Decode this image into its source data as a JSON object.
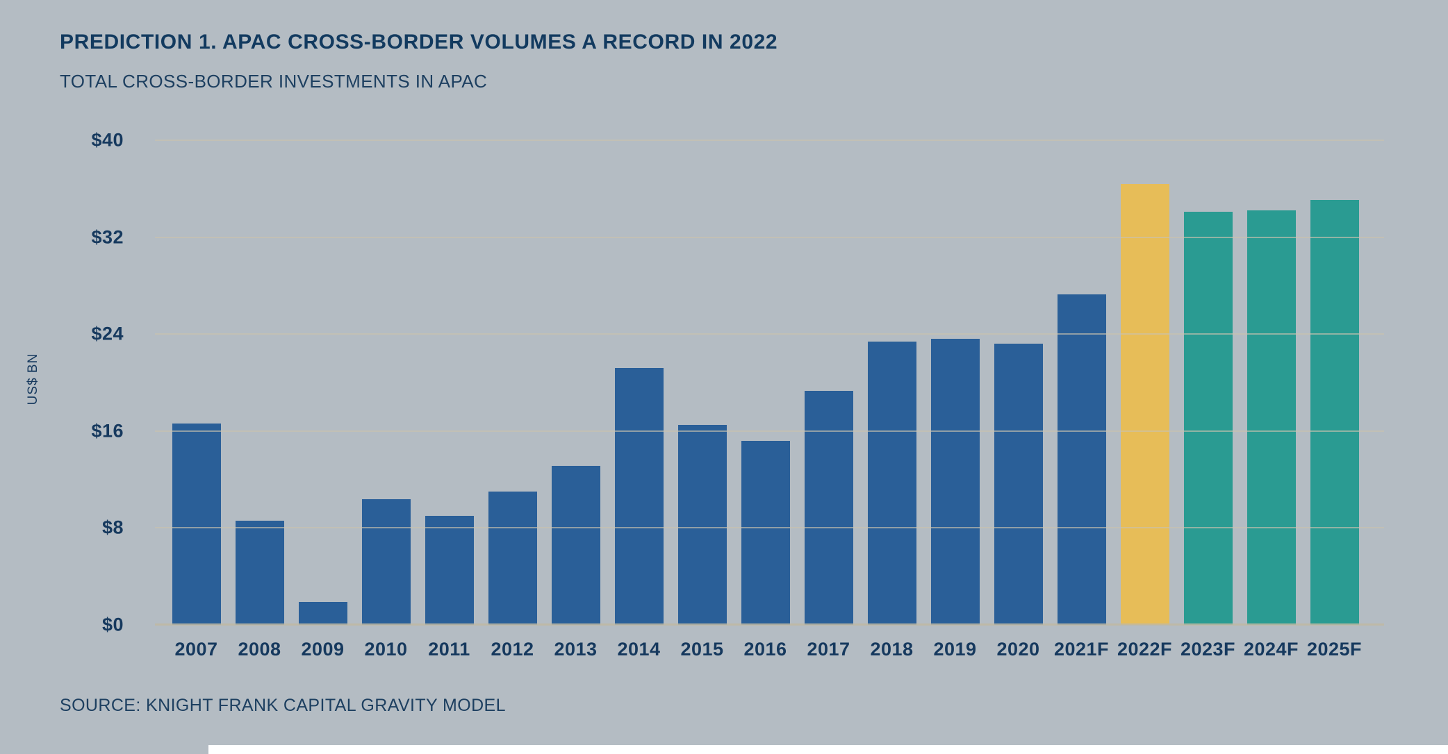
{
  "header": {
    "title": "PREDICTION 1. APAC CROSS-BORDER VOLUMES A RECORD IN 2022",
    "subtitle": "TOTAL CROSS-BORDER INVESTMENTS IN APAC"
  },
  "footer": {
    "source": "SOURCE: KNIGHT FRANK CAPITAL GRAVITY MODEL"
  },
  "colors": {
    "background": "#b4bcc3",
    "text_navy": "#16395e",
    "gridline": "#c9c2ae",
    "baseline": "#c0b8a2"
  },
  "chart_data": {
    "type": "bar",
    "title": "PREDICTION 1. APAC CROSS-BORDER VOLUMES A RECORD IN 2022",
    "subtitle": "TOTAL CROSS-BORDER INVESTMENTS IN APAC",
    "xlabel": "",
    "ylabel": "US$ BN",
    "ylim": [
      0,
      40
    ],
    "grid": true,
    "legend": "none",
    "y_ticks": [
      0,
      8,
      16,
      24,
      32,
      40
    ],
    "y_tick_labels": [
      "$0",
      "$8",
      "$16",
      "$24",
      "$32",
      "$40"
    ],
    "categories": [
      "2007",
      "2008",
      "2009",
      "2010",
      "2011",
      "2012",
      "2013",
      "2014",
      "2015",
      "2016",
      "2017",
      "2018",
      "2019",
      "2020",
      "2021F",
      "2022F",
      "2023F",
      "2024F",
      "2025F"
    ],
    "values": [
      16.6,
      8.6,
      1.9,
      10.4,
      9.0,
      11.0,
      13.1,
      21.2,
      16.5,
      15.2,
      19.3,
      23.4,
      23.6,
      23.2,
      27.3,
      36.4,
      34.1,
      34.2,
      35.1
    ],
    "bar_palette": {
      "historical": "#2a5f98",
      "record_forecast": "#e7bd58",
      "forecast": "#2a9b92"
    },
    "bar_color_keys": [
      "historical",
      "historical",
      "historical",
      "historical",
      "historical",
      "historical",
      "historical",
      "historical",
      "historical",
      "historical",
      "historical",
      "historical",
      "historical",
      "historical",
      "historical",
      "record_forecast",
      "forecast",
      "forecast",
      "forecast"
    ]
  }
}
